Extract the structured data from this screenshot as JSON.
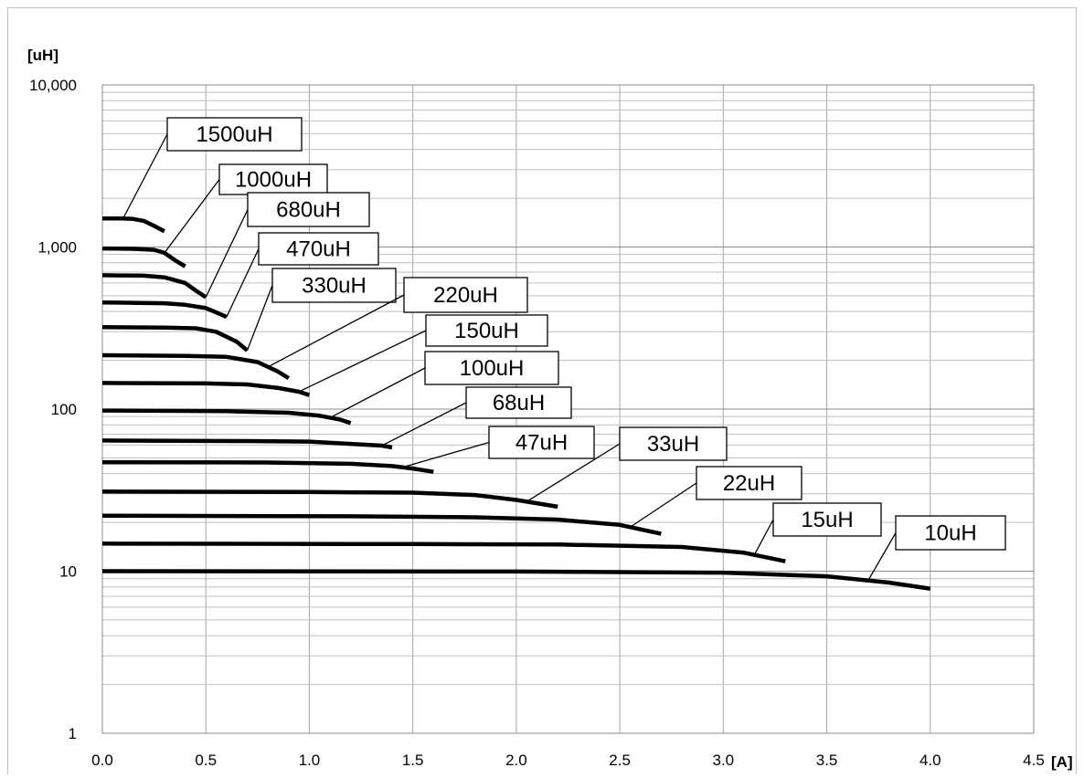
{
  "chart_data": {
    "type": "line",
    "title": "",
    "xlabel": "",
    "ylabel": "",
    "x_unit_label": "[A]",
    "y_unit_label": "[uH]",
    "y_scale": "log",
    "xlim": [
      0.0,
      4.5
    ],
    "ylim": [
      1,
      10000
    ],
    "x_ticks": [
      "0.0",
      "0.5",
      "1.0",
      "1.5",
      "2.0",
      "2.5",
      "3.0",
      "3.5",
      "4.0",
      "4.5"
    ],
    "y_ticks": [
      "1",
      "10",
      "100",
      "1,000",
      "10,000"
    ],
    "grid": true,
    "legend": "none",
    "series": [
      {
        "name": "1500uH",
        "x": [
          0.0,
          0.1,
          0.15,
          0.2,
          0.25,
          0.3
        ],
        "y": [
          1500,
          1500,
          1490,
          1450,
          1350,
          1250
        ]
      },
      {
        "name": "1000uH",
        "x": [
          0.0,
          0.15,
          0.25,
          0.3,
          0.35,
          0.4
        ],
        "y": [
          980,
          975,
          960,
          920,
          830,
          760
        ]
      },
      {
        "name": "680uH",
        "x": [
          0.0,
          0.2,
          0.3,
          0.4,
          0.45,
          0.5
        ],
        "y": [
          670,
          665,
          650,
          600,
          540,
          490
        ]
      },
      {
        "name": "470uH",
        "x": [
          0.0,
          0.3,
          0.4,
          0.5,
          0.55,
          0.6
        ],
        "y": [
          455,
          450,
          440,
          420,
          395,
          370
        ]
      },
      {
        "name": "330uH",
        "x": [
          0.0,
          0.3,
          0.45,
          0.55,
          0.65,
          0.7
        ],
        "y": [
          320,
          318,
          315,
          300,
          260,
          230
        ]
      },
      {
        "name": "220uH",
        "x": [
          0.0,
          0.4,
          0.6,
          0.75,
          0.85,
          0.9
        ],
        "y": [
          215,
          213,
          210,
          195,
          170,
          155
        ]
      },
      {
        "name": "150uH",
        "x": [
          0.0,
          0.5,
          0.7,
          0.85,
          0.95,
          1.0
        ],
        "y": [
          145,
          144,
          142,
          135,
          128,
          122
        ]
      },
      {
        "name": "100uH",
        "x": [
          0.0,
          0.6,
          0.9,
          1.05,
          1.15,
          1.2
        ],
        "y": [
          98,
          97,
          95,
          91,
          86,
          82
        ]
      },
      {
        "name": "68uH",
        "x": [
          0.0,
          0.7,
          1.0,
          1.2,
          1.35,
          1.4
        ],
        "y": [
          64,
          63.5,
          63,
          61,
          59.5,
          58
        ]
      },
      {
        "name": "47uH",
        "x": [
          0.0,
          0.8,
          1.2,
          1.4,
          1.5,
          1.6
        ],
        "y": [
          47,
          46.8,
          46,
          44.5,
          43,
          41
        ]
      },
      {
        "name": "33uH",
        "x": [
          0.0,
          1.0,
          1.5,
          1.8,
          2.0,
          2.2
        ],
        "y": [
          31,
          30.8,
          30.5,
          29.5,
          27.5,
          25
        ]
      },
      {
        "name": "22uH",
        "x": [
          0.0,
          1.2,
          1.8,
          2.2,
          2.5,
          2.7
        ],
        "y": [
          22,
          21.8,
          21.5,
          20.8,
          19.3,
          17
        ]
      },
      {
        "name": "15uH",
        "x": [
          0.0,
          1.5,
          2.2,
          2.8,
          3.1,
          3.3
        ],
        "y": [
          14.8,
          14.7,
          14.6,
          14.1,
          13.0,
          11.5
        ]
      },
      {
        "name": "10uH",
        "x": [
          0.0,
          2.0,
          3.0,
          3.5,
          3.8,
          4.0
        ],
        "y": [
          10,
          9.95,
          9.8,
          9.3,
          8.5,
          7.8
        ]
      }
    ]
  }
}
